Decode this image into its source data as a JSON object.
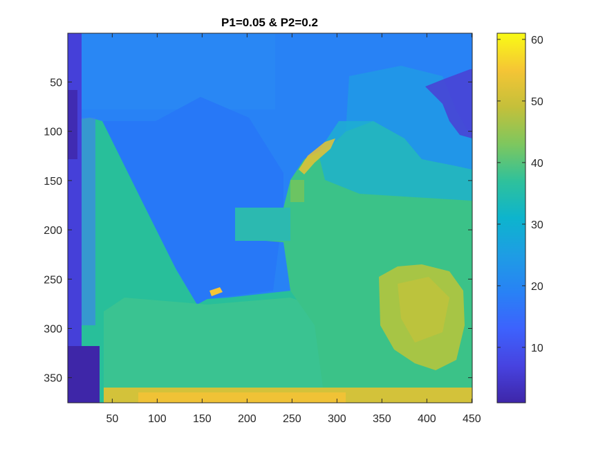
{
  "chart_data": {
    "type": "heatmap",
    "title": "P1=0.05 & P2=0.2",
    "xlabel": "",
    "ylabel": "",
    "xlim": [
      0.5,
      450.5
    ],
    "ylim": [
      0.5,
      375.5
    ],
    "y_direction": "reversed",
    "xticks": [
      50,
      100,
      150,
      200,
      250,
      300,
      350,
      400,
      450
    ],
    "yticks": [
      50,
      100,
      150,
      200,
      250,
      300,
      350
    ],
    "colormap": "parula",
    "colorbar": {
      "range": [
        1,
        61
      ],
      "ticks": [
        10,
        20,
        30,
        40,
        50,
        60
      ],
      "location": "right"
    },
    "approx_value_regions": [
      {
        "region": "left border columns x 1-15",
        "value": 8
      },
      {
        "region": "upper sky x 15-450, y 1-80",
        "value": 19
      },
      {
        "region": "central wedge x 40-230, y 80-280",
        "value": 20
      },
      {
        "region": "upper-right dark patch x 400-450, y 40-110",
        "value": 6
      },
      {
        "region": "middle-right mass x 210-450, y 110-320",
        "value": 33
      },
      {
        "region": "left slope x 15-110, y 90-375",
        "value": 31
      },
      {
        "region": "lower-right bright patch x 350-430, y 240-320",
        "value": 44
      },
      {
        "region": "bottom strip y 355-375",
        "value": 46
      }
    ]
  }
}
